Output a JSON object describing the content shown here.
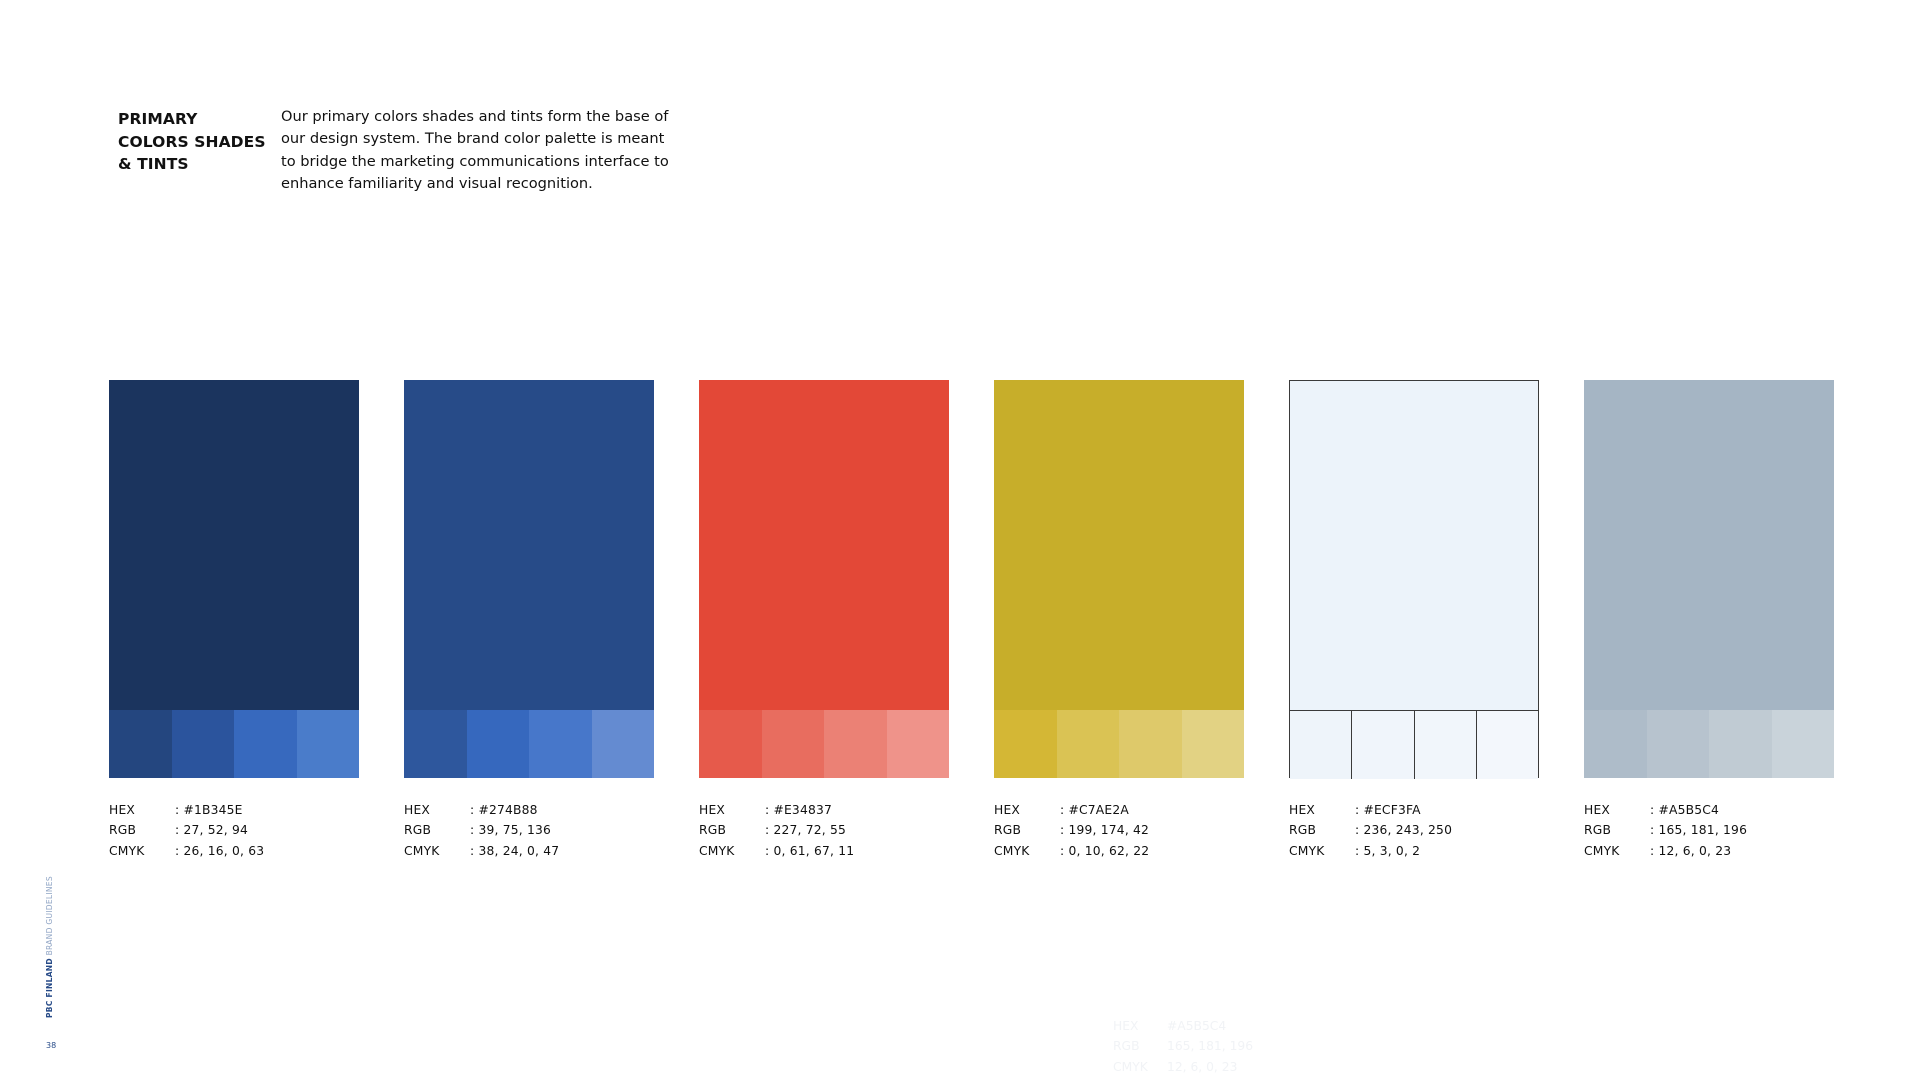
{
  "heading": {
    "line1": "PRIMARY",
    "line2": "COLORS SHADES",
    "line3": "& TINTS"
  },
  "intro": "Our primary colors shades and tints form the base of our design system. The brand color palette is meant to bridge the marketing communications interface to enhance familiarity and visual recognition.",
  "swatches": [
    {
      "main_color": "#1B345E",
      "tints": [
        "#24467F",
        "#2B549D",
        "#3769BE",
        "#4A7CCA"
      ],
      "hex": "#1B345E",
      "rgb": "27, 52, 94",
      "cmyk": "26, 16, 0, 63"
    },
    {
      "main_color": "#274B88",
      "tints": [
        "#2E579D",
        "#3668BE",
        "#4777CA",
        "#648BD1"
      ],
      "hex": "#274B88",
      "rgb": "39, 75, 136",
      "cmyk": "38, 24, 0, 47"
    },
    {
      "main_color": "#E34837",
      "tints": [
        "#E65A4B",
        "#E86D5F",
        "#EB8175",
        "#EF938A"
      ],
      "hex": "#E34837",
      "rgb": "227, 72, 55",
      "cmyk": "0, 61, 67, 11"
    },
    {
      "main_color": "#C7AE2A",
      "tints": [
        "#D4B735",
        "#DAC354",
        "#DEC96A",
        "#E2D283"
      ],
      "hex": "#C7AE2A",
      "rgb": "199, 174, 42",
      "cmyk": "0, 10, 62, 22"
    },
    {
      "main_color": "#ECF3FA",
      "tints": [
        "#EEF4FA",
        "#F0F5FB",
        "#F1F6FB",
        "#F3F7FC"
      ],
      "hex": "#ECF3FA",
      "rgb": "236, 243, 250",
      "cmyk": "5, 3, 0, 2"
    },
    {
      "main_color": "#A5B5C4",
      "tints": [
        "#AEBCC9",
        "#B7C3CE",
        "#C0CBD3",
        "#C9D3DA"
      ],
      "hex": "#A5B5C4",
      "rgb": "165, 181, 196",
      "cmyk": "12, 6, 0, 23"
    }
  ],
  "labels": {
    "hex": "HEX",
    "rgb": "RGB",
    "cmyk": "CMYK"
  },
  "sidebar": {
    "brand": "PBC FINLAND",
    "sub": "BRAND GUIDELINES"
  },
  "page_number": "38"
}
